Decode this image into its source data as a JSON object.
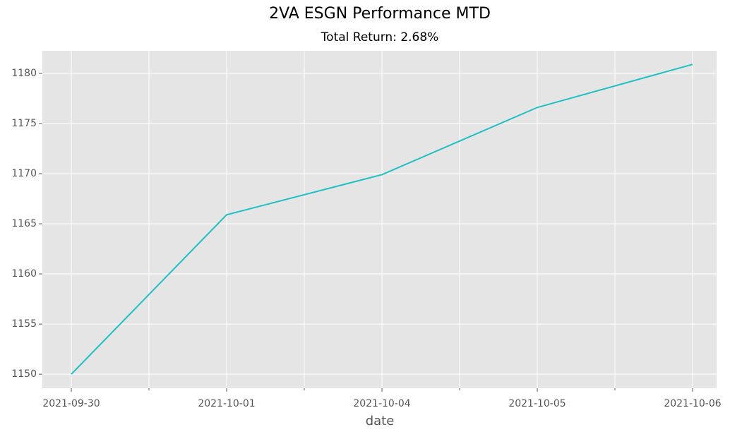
{
  "chart_data": {
    "type": "line",
    "title": "2VA ESGN Performance MTD",
    "subtitle": "Total Return: 2.68%",
    "xlabel": "date",
    "categories": [
      "2021-09-30",
      "2021-10-01",
      "2021-10-04",
      "2021-10-05",
      "2021-10-06"
    ],
    "series": [
      {
        "name": "2VA ESGN",
        "color": "#1fbfc4",
        "values": [
          1150.0,
          1165.9,
          1169.9,
          1176.6,
          1180.9
        ]
      }
    ],
    "ylim": [
      1148.6,
      1182.25
    ],
    "yticks": [
      1150,
      1155,
      1160,
      1165,
      1170,
      1175,
      1180
    ],
    "grid": true
  }
}
